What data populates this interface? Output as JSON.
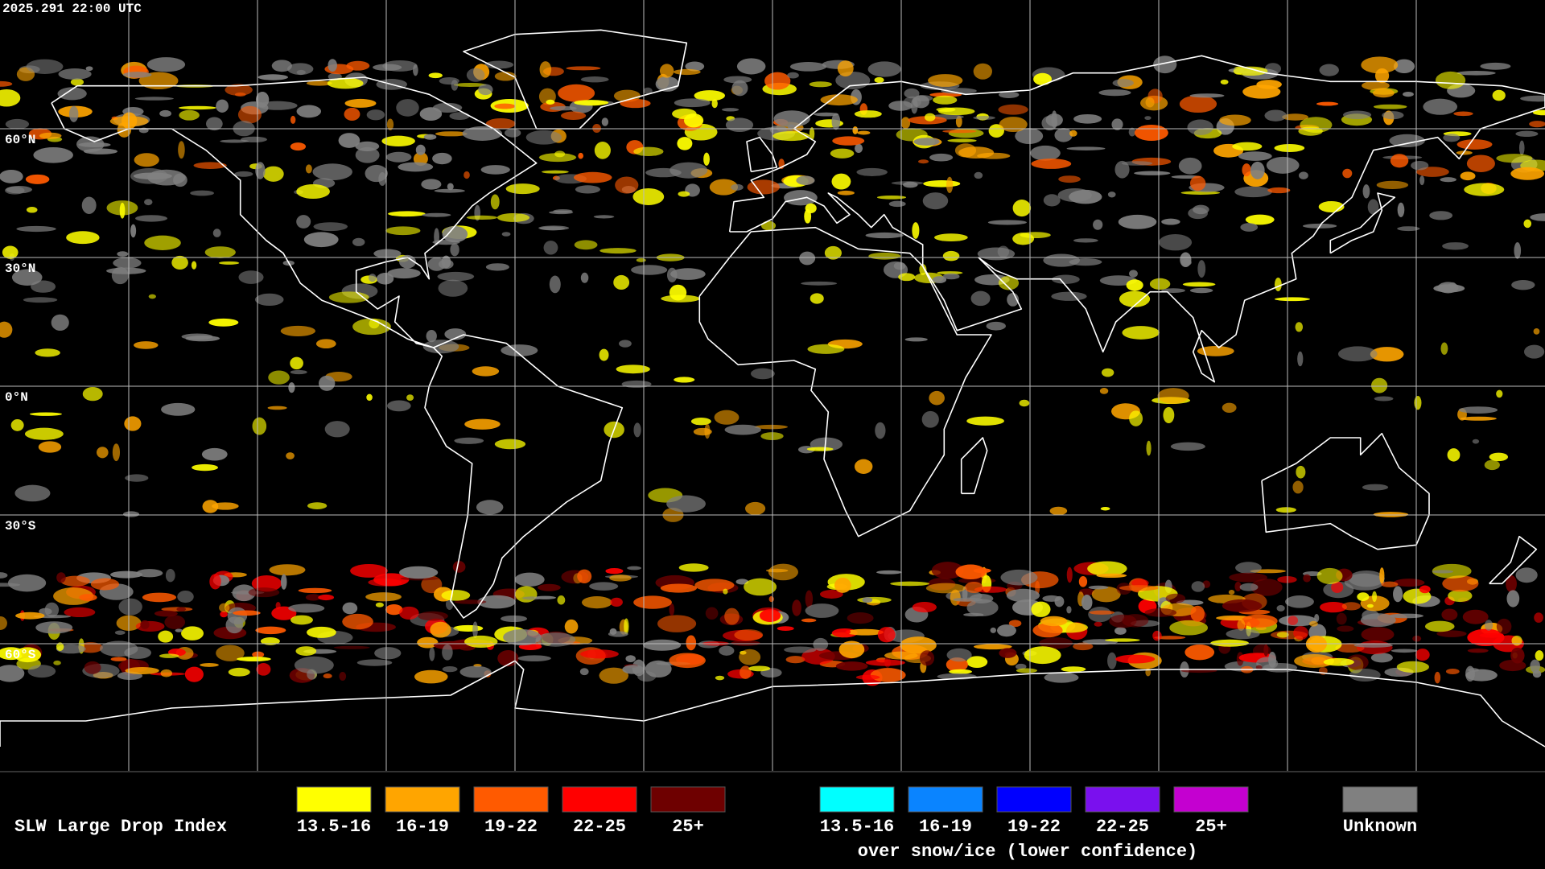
{
  "timestamp": "2025.291 22:00 UTC",
  "latitude_labels": [
    "60°N",
    "30°N",
    "0°N",
    "30°S",
    "60°S"
  ],
  "legend": {
    "title": "SLW Large Drop Index",
    "primary": [
      {
        "label": "13.5-16",
        "color": "#ffff00"
      },
      {
        "label": "16-19",
        "color": "#ffa500"
      },
      {
        "label": "19-22",
        "color": "#ff5a00"
      },
      {
        "label": "22-25",
        "color": "#ff0000"
      },
      {
        "label": "25+",
        "color": "#6e0000"
      }
    ],
    "snow_ice": [
      {
        "label": "13.5-16",
        "color": "#00ffff"
      },
      {
        "label": "16-19",
        "color": "#0a84ff"
      },
      {
        "label": "19-22",
        "color": "#0000ff"
      },
      {
        "label": "22-25",
        "color": "#7a10ee"
      },
      {
        "label": "25+",
        "color": "#c400d0"
      }
    ],
    "snow_ice_caption": "over snow/ice (lower confidence)",
    "unknown": {
      "label": "Unknown",
      "color": "#808080"
    }
  }
}
